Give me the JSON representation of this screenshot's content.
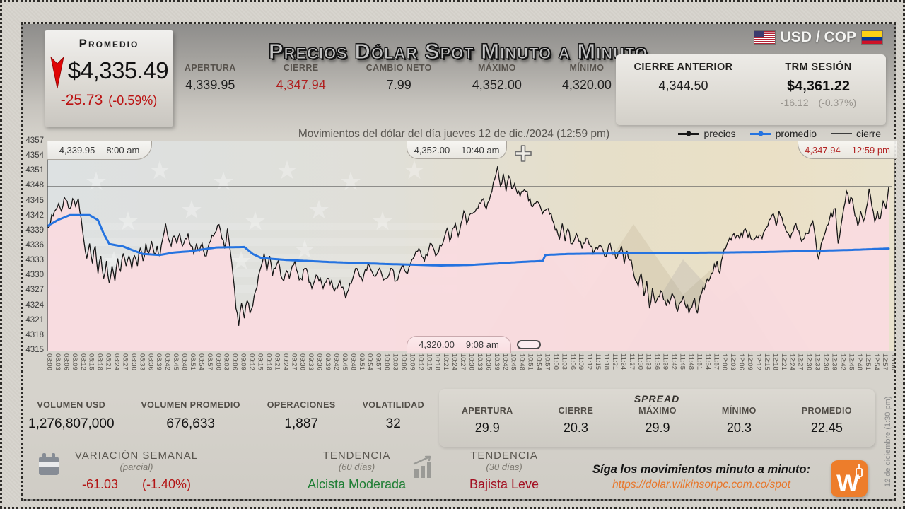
{
  "title": "Precios Dólar Spot Minuto a Minuto",
  "pair": {
    "label": "USD / COP"
  },
  "promedio_box": {
    "label": "Promedio",
    "value": "$4,335.49",
    "change": "-25.73",
    "change_pct": "(-0.59%)"
  },
  "top_stats": [
    {
      "label": "APERTURA",
      "value": "4,339.95",
      "accent": false
    },
    {
      "label": "CIERRE",
      "value": "4,347.94",
      "accent": true
    },
    {
      "label": "CAMBIO NETO",
      "value": "7.99",
      "accent": false
    },
    {
      "label": "MÁXIMO",
      "value": "4,352.00",
      "accent": false
    },
    {
      "label": "MÍNIMO",
      "value": "4,320.00",
      "accent": false
    }
  ],
  "prev_close": {
    "label": "CIERRE ANTERIOR",
    "value": "4,344.50"
  },
  "trm": {
    "label": "TRM SESIÓN",
    "value": "$4,361.22",
    "change": "-16.12",
    "change_pct": "(-0.37%)"
  },
  "subtitle": "Movimientos del dólar del día jueves 12 de dic./2024 (12:59 pm)",
  "legend": [
    {
      "label": "precios",
      "color": "#161616",
      "thick": 3,
      "marker": true
    },
    {
      "label": "promedio",
      "color": "#2573e0",
      "thick": 3,
      "marker": true
    },
    {
      "label": "cierre",
      "color": "#3c3c3c",
      "thick": 1.5,
      "marker": false
    }
  ],
  "annotations": {
    "open": {
      "price": "4,339.95",
      "time": "8:00 am"
    },
    "high": {
      "price": "4,352.00",
      "time": "10:40 am"
    },
    "last": {
      "price": "4,347.94",
      "time": "12:59 pm"
    },
    "low": {
      "price": "4,320.00",
      "time": "9:08 am"
    }
  },
  "chart_data": {
    "type": "line",
    "title": "Precios Dólar Spot Minuto a Minuto",
    "subtitle": "Movimientos del dólar del día jueves 12 de dic./2024 (12:59 pm)",
    "x_axis": {
      "start": "08:00",
      "end": "13:00",
      "step_minutes": 3,
      "total_minutes": 300
    },
    "y_axis": {
      "min": 4315,
      "max": 4357,
      "step": 3
    },
    "key_points": {
      "open": 4339.95,
      "high": 4352.0,
      "high_time": "10:40",
      "low": 4320.0,
      "low_time": "09:08",
      "last": 4347.94,
      "last_time": "12:59",
      "session_average": 4335.49,
      "previous_close": 4344.5
    },
    "series": [
      {
        "name": "precios",
        "color": "#161616",
        "anchors": [
          [
            0,
            4339.95
          ],
          [
            2,
            4342
          ],
          [
            4,
            4344.5
          ],
          [
            5,
            4343
          ],
          [
            6,
            4345.8
          ],
          [
            8,
            4343.5
          ],
          [
            9,
            4345.5
          ],
          [
            10,
            4344
          ],
          [
            11,
            4345.5
          ],
          [
            12,
            4341.5
          ],
          [
            13,
            4337
          ],
          [
            14,
            4333.5
          ],
          [
            15,
            4336.5
          ],
          [
            16,
            4332.5
          ],
          [
            17,
            4336
          ],
          [
            18,
            4330.5
          ],
          [
            19,
            4334
          ],
          [
            20,
            4329.5
          ],
          [
            21,
            4333
          ],
          [
            22,
            4328.5
          ],
          [
            23,
            4332
          ],
          [
            24,
            4329
          ],
          [
            25,
            4333.5
          ],
          [
            26,
            4331
          ],
          [
            27,
            4334.5
          ],
          [
            28,
            4332
          ],
          [
            29,
            4334
          ],
          [
            30,
            4331.5
          ],
          [
            31,
            4334
          ],
          [
            32,
            4332
          ],
          [
            33,
            4335.5
          ],
          [
            34,
            4333
          ],
          [
            35,
            4336.5
          ],
          [
            36,
            4334.5
          ],
          [
            37,
            4337
          ],
          [
            38,
            4334.5
          ],
          [
            39,
            4336
          ],
          [
            40,
            4334
          ],
          [
            41,
            4337.5
          ],
          [
            42,
            4340.5
          ],
          [
            43,
            4337.5
          ],
          [
            44,
            4336
          ],
          [
            45,
            4338
          ],
          [
            46,
            4336.5
          ],
          [
            47,
            4338.5
          ],
          [
            48,
            4336
          ],
          [
            49,
            4337.5
          ],
          [
            50,
            4338.5
          ],
          [
            51,
            4336
          ],
          [
            52,
            4334.5
          ],
          [
            53,
            4336.5
          ],
          [
            54,
            4335
          ],
          [
            55,
            4336.5
          ],
          [
            56,
            4334
          ],
          [
            57,
            4335.5
          ],
          [
            58,
            4337
          ],
          [
            59,
            4338
          ],
          [
            60,
            4339
          ],
          [
            61,
            4340.3
          ],
          [
            62,
            4337.5
          ],
          [
            63,
            4335.5
          ],
          [
            64,
            4339.5
          ],
          [
            65,
            4335
          ],
          [
            66,
            4330
          ],
          [
            67,
            4323.5
          ],
          [
            68,
            4320
          ],
          [
            69,
            4324.5
          ],
          [
            70,
            4321.5
          ],
          [
            71,
            4325
          ],
          [
            72,
            4322.5
          ],
          [
            73,
            4324
          ],
          [
            74,
            4327
          ],
          [
            75,
            4330
          ],
          [
            76,
            4332
          ],
          [
            77,
            4334.5
          ],
          [
            78,
            4331
          ],
          [
            79,
            4334
          ],
          [
            80,
            4330
          ],
          [
            81,
            4331.5
          ],
          [
            82,
            4333
          ],
          [
            83,
            4330
          ],
          [
            84,
            4329
          ],
          [
            85,
            4331
          ],
          [
            86,
            4329.5
          ],
          [
            87,
            4332
          ],
          [
            88,
            4333
          ],
          [
            89,
            4330.5
          ],
          [
            90,
            4329.5
          ],
          [
            92,
            4331.5
          ],
          [
            94,
            4327.5
          ],
          [
            96,
            4330
          ],
          [
            98,
            4327.5
          ],
          [
            100,
            4329.5
          ],
          [
            102,
            4327
          ],
          [
            104,
            4329
          ],
          [
            106,
            4325.5
          ],
          [
            108,
            4328.5
          ],
          [
            110,
            4331.5
          ],
          [
            112,
            4329
          ],
          [
            114,
            4332.5
          ],
          [
            116,
            4330
          ],
          [
            118,
            4331.5
          ],
          [
            120,
            4329.5
          ],
          [
            122,
            4331.5
          ],
          [
            124,
            4329
          ],
          [
            126,
            4332
          ],
          [
            128,
            4330.5
          ],
          [
            130,
            4333.5
          ],
          [
            132,
            4335.5
          ],
          [
            134,
            4333
          ],
          [
            136,
            4336.5
          ],
          [
            138,
            4334
          ],
          [
            140,
            4336
          ],
          [
            142,
            4339.5
          ],
          [
            143,
            4337
          ],
          [
            145,
            4340.5
          ],
          [
            146,
            4338
          ],
          [
            148,
            4343
          ],
          [
            149,
            4340.5
          ],
          [
            151,
            4342.5
          ],
          [
            153,
            4343.5
          ],
          [
            155,
            4345.5
          ],
          [
            156,
            4343.5
          ],
          [
            158,
            4347
          ],
          [
            159,
            4349.5
          ],
          [
            160,
            4352
          ],
          [
            161,
            4348
          ],
          [
            162,
            4350.5
          ],
          [
            163,
            4347
          ],
          [
            164,
            4350
          ],
          [
            165,
            4347.5
          ],
          [
            166,
            4348.5
          ],
          [
            168,
            4346
          ],
          [
            170,
            4347
          ],
          [
            172,
            4344
          ],
          [
            174,
            4345
          ],
          [
            176,
            4342.5
          ],
          [
            178,
            4343.5
          ],
          [
            180,
            4340.5
          ],
          [
            182,
            4337.5
          ],
          [
            183,
            4340.5
          ],
          [
            184,
            4337
          ],
          [
            185,
            4339.5
          ],
          [
            186,
            4336.5
          ],
          [
            188,
            4338.5
          ],
          [
            190,
            4335.5
          ],
          [
            192,
            4337.5
          ],
          [
            194,
            4334.5
          ],
          [
            196,
            4336
          ],
          [
            198,
            4334
          ],
          [
            200,
            4336.5
          ],
          [
            202,
            4333.5
          ],
          [
            204,
            4336
          ],
          [
            205,
            4332.5
          ],
          [
            206,
            4335
          ],
          [
            208,
            4331.5
          ],
          [
            210,
            4328
          ],
          [
            211,
            4330.5
          ],
          [
            212,
            4326
          ],
          [
            213,
            4329
          ],
          [
            214,
            4323.5
          ],
          [
            215,
            4327.5
          ],
          [
            216,
            4324.5
          ],
          [
            218,
            4327
          ],
          [
            220,
            4324
          ],
          [
            222,
            4326.5
          ],
          [
            224,
            4323
          ],
          [
            226,
            4326
          ],
          [
            228,
            4322.5
          ],
          [
            230,
            4325.5
          ],
          [
            231,
            4322.5
          ],
          [
            232,
            4326
          ],
          [
            234,
            4328.5
          ],
          [
            236,
            4330.5
          ],
          [
            238,
            4333
          ],
          [
            239,
            4330.5
          ],
          [
            240,
            4334
          ],
          [
            242,
            4337
          ],
          [
            244,
            4338.5
          ],
          [
            246,
            4337.5
          ],
          [
            248,
            4339.5
          ],
          [
            250,
            4337.5
          ],
          [
            252,
            4338
          ],
          [
            254,
            4337.5
          ],
          [
            256,
            4340
          ],
          [
            258,
            4342.5
          ],
          [
            259,
            4340
          ],
          [
            260,
            4343
          ],
          [
            262,
            4340
          ],
          [
            264,
            4337.5
          ],
          [
            266,
            4340.5
          ],
          [
            268,
            4337
          ],
          [
            270,
            4338.5
          ],
          [
            272,
            4341
          ],
          [
            274,
            4333.5
          ],
          [
            276,
            4338
          ],
          [
            278,
            4341.5
          ],
          [
            280,
            4343.5
          ],
          [
            281,
            4336.5
          ],
          [
            282,
            4340
          ],
          [
            283,
            4343.5
          ],
          [
            284,
            4347
          ],
          [
            285,
            4344.5
          ],
          [
            286,
            4345.5
          ],
          [
            287,
            4342
          ],
          [
            288,
            4340
          ],
          [
            289,
            4343
          ],
          [
            290,
            4341
          ],
          [
            291,
            4343.5
          ],
          [
            292,
            4347.5
          ],
          [
            293,
            4344
          ],
          [
            294,
            4341
          ],
          [
            295,
            4343
          ],
          [
            296,
            4341.5
          ],
          [
            297,
            4345
          ],
          [
            298,
            4343.5
          ],
          [
            299,
            4347.94
          ]
        ]
      },
      {
        "name": "promedio",
        "color": "#2573e0",
        "anchors": [
          [
            0,
            4340
          ],
          [
            4,
            4341.3
          ],
          [
            8,
            4342.2
          ],
          [
            15,
            4342.2
          ],
          [
            18,
            4341.2
          ],
          [
            20,
            4338.5
          ],
          [
            22,
            4336.4
          ],
          [
            27,
            4335.9
          ],
          [
            31,
            4335
          ],
          [
            34,
            4334.4
          ],
          [
            40,
            4334.2
          ],
          [
            45,
            4334.7
          ],
          [
            50,
            4334.9
          ],
          [
            55,
            4335.3
          ],
          [
            60,
            4335.7
          ],
          [
            70,
            4335.8
          ],
          [
            73,
            4334.4
          ],
          [
            76,
            4333.6
          ],
          [
            85,
            4333.2
          ],
          [
            100,
            4332.8
          ],
          [
            120,
            4332.4
          ],
          [
            140,
            4332.1
          ],
          [
            150,
            4332.2
          ],
          [
            160,
            4332.5
          ],
          [
            168,
            4332.8
          ],
          [
            176,
            4333
          ],
          [
            177,
            4334.2
          ],
          [
            185,
            4334.4
          ],
          [
            200,
            4334.5
          ],
          [
            220,
            4334.6
          ],
          [
            240,
            4334.7
          ],
          [
            255,
            4334.8
          ],
          [
            270,
            4335
          ],
          [
            285,
            4335.2
          ],
          [
            299,
            4335.49
          ]
        ]
      },
      {
        "name": "cierre",
        "color": "#5c5c5c",
        "value": 4347.94
      }
    ],
    "fill_color": "#fadce0",
    "render": {
      "jitter": 0.8,
      "seed": 7
    }
  },
  "bottom_stats": [
    {
      "label": "VOLUMEN USD",
      "value": "1,276,807,000"
    },
    {
      "label": "VOLUMEN PROMEDIO",
      "value": "676,633"
    },
    {
      "label": "OPERACIONES",
      "value": "1,887"
    },
    {
      "label": "VOLATILIDAD",
      "value": "32"
    }
  ],
  "spread": {
    "title": "SPREAD",
    "items": [
      {
        "label": "APERTURA",
        "value": "29.9"
      },
      {
        "label": "CIERRE",
        "value": "20.3"
      },
      {
        "label": "MÁXIMO",
        "value": "29.9"
      },
      {
        "label": "MÍNIMO",
        "value": "20.3"
      },
      {
        "label": "PROMEDIO",
        "value": "22.45"
      }
    ]
  },
  "footer": {
    "variacion": {
      "title": "VARIACIÓN SEMANAL",
      "subtitle": "(parcial)",
      "value": "-61.03",
      "pct": "(-1.40%)"
    },
    "tendencia_60": {
      "title": "TENDENCIA",
      "subtitle": "(60 días)",
      "value": "Alcista Moderada"
    },
    "tendencia_30": {
      "title": "TENDENCIA",
      "subtitle": "(30 días)",
      "value": "Bajista Leve"
    },
    "follow": {
      "text": "Síga los movimientos minuto a minuto:",
      "url": "https://dolar.wilkinsonpc.com.co/spot"
    }
  },
  "side_note": "12 de diciembre (1:30 pm)",
  "colors": {
    "accent_red": "#bb1111",
    "green": "#1e7e34",
    "dark_red": "#a31022",
    "blue": "#2573e0",
    "orange": "#e8762a",
    "pink_fill": "#fadce0"
  }
}
